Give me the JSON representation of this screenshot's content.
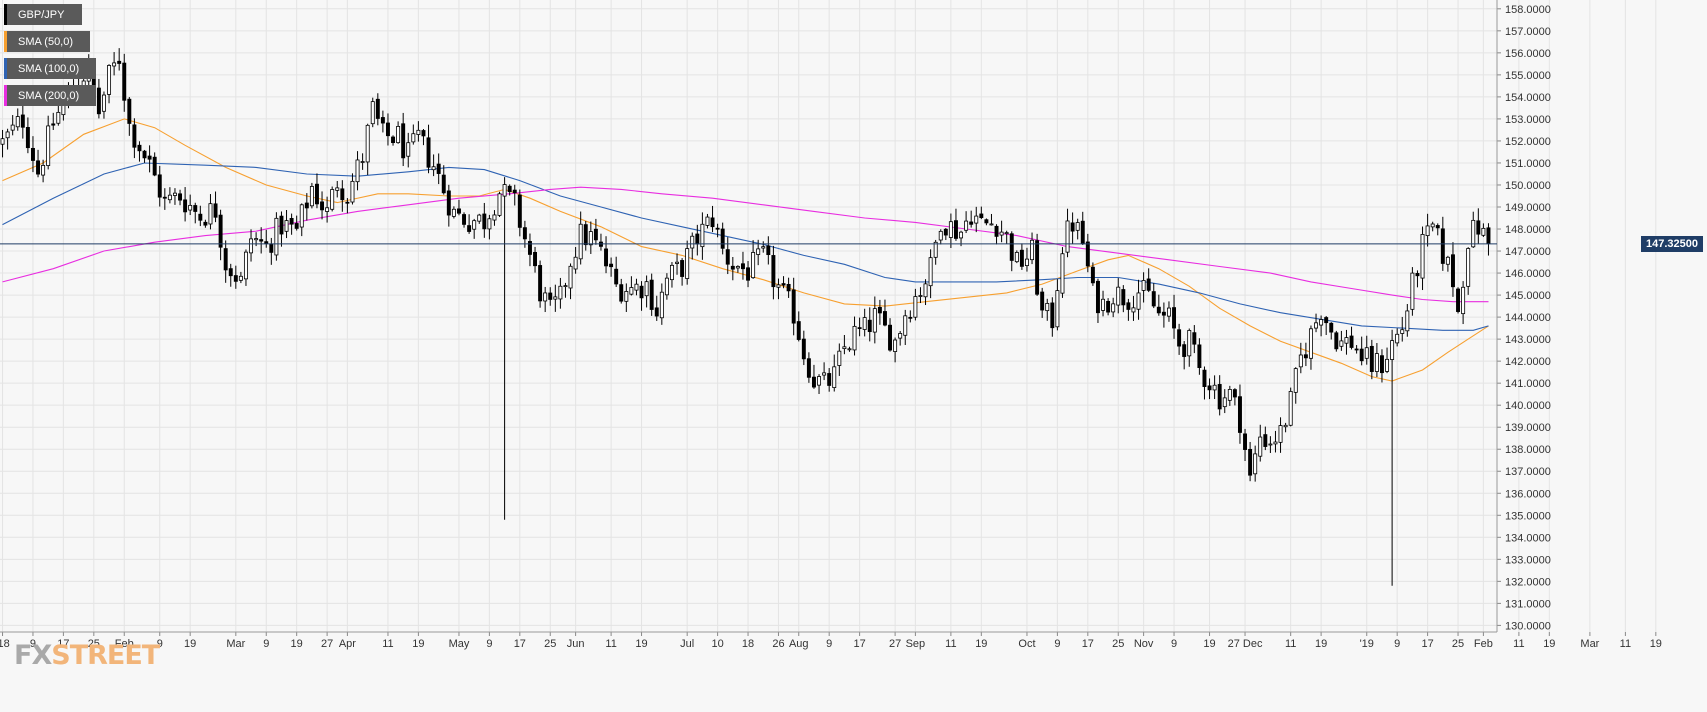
{
  "legend": {
    "symbol": "GBP/JPY",
    "sma50": "SMA (50,0)",
    "sma100": "SMA (100,0)",
    "sma200": "SMA (200,0)"
  },
  "colors": {
    "background": "#f7f7f7",
    "grid": "#e4e4e4",
    "candle_bull": "#ffffff",
    "candle_bear": "#000000",
    "sma50": "#f7a030",
    "sma100": "#2f63b3",
    "sma200": "#e82ee0",
    "current_price_line": "#1f3d66",
    "price_tag_bg": "#1f3d66"
  },
  "current_price": {
    "value": 147.325,
    "label": "147.32500"
  },
  "logo": {
    "part1": "FX",
    "part2": "STREET"
  },
  "chart_data": {
    "type": "candlestick",
    "title": "GBP/JPY",
    "y_axis_side": "right",
    "ylim": [
      129.7,
      158.4
    ],
    "y_ticks": [
      {
        "value": 158,
        "label": "158.0000"
      },
      {
        "value": 157,
        "label": "157.0000"
      },
      {
        "value": 156,
        "label": "156.0000"
      },
      {
        "value": 155,
        "label": "155.0000"
      },
      {
        "value": 154,
        "label": "154.0000"
      },
      {
        "value": 153,
        "label": "153.0000"
      },
      {
        "value": 152,
        "label": "152.0000"
      },
      {
        "value": 151,
        "label": "151.0000"
      },
      {
        "value": 150,
        "label": "150.0000"
      },
      {
        "value": 149,
        "label": "149.0000"
      },
      {
        "value": 148,
        "label": "148.0000"
      },
      {
        "value": 147,
        "label": "147.0000"
      },
      {
        "value": 146,
        "label": "146.0000"
      },
      {
        "value": 145,
        "label": "145.0000"
      },
      {
        "value": 144,
        "label": "144.0000"
      },
      {
        "value": 143,
        "label": "143.0000"
      },
      {
        "value": 142,
        "label": "142.0000"
      },
      {
        "value": 141,
        "label": "141.0000"
      },
      {
        "value": 140,
        "label": "140.0000"
      },
      {
        "value": 139,
        "label": "139.0000"
      },
      {
        "value": 138,
        "label": "138.0000"
      },
      {
        "value": 137,
        "label": "137.0000"
      },
      {
        "value": 136,
        "label": "136.0000"
      },
      {
        "value": 135,
        "label": "135.0000"
      },
      {
        "value": 134,
        "label": "134.0000"
      },
      {
        "value": 133,
        "label": "133.0000"
      },
      {
        "value": 132,
        "label": "132.0000"
      },
      {
        "value": 131,
        "label": "131.0000"
      },
      {
        "value": 130,
        "label": "130.0000"
      }
    ],
    "x_ticks": [
      {
        "label": "'18",
        "bar": 0
      },
      {
        "label": "9",
        "bar": 6
      },
      {
        "label": "17",
        "bar": 12
      },
      {
        "label": "25",
        "bar": 18
      },
      {
        "label": "Feb",
        "bar": 24
      },
      {
        "label": "9",
        "bar": 31
      },
      {
        "label": "19",
        "bar": 37
      },
      {
        "label": "Mar",
        "bar": 46
      },
      {
        "label": "9",
        "bar": 52
      },
      {
        "label": "19",
        "bar": 58
      },
      {
        "label": "27",
        "bar": 64
      },
      {
        "label": "Apr",
        "bar": 68
      },
      {
        "label": "11",
        "bar": 76
      },
      {
        "label": "19",
        "bar": 82
      },
      {
        "label": "May",
        "bar": 90
      },
      {
        "label": "9",
        "bar": 96
      },
      {
        "label": "17",
        "bar": 102
      },
      {
        "label": "25",
        "bar": 108
      },
      {
        "label": "Jun",
        "bar": 113
      },
      {
        "label": "11",
        "bar": 120
      },
      {
        "label": "19",
        "bar": 126
      },
      {
        "label": "Jul",
        "bar": 135
      },
      {
        "label": "10",
        "bar": 141
      },
      {
        "label": "18",
        "bar": 147
      },
      {
        "label": "26",
        "bar": 153
      },
      {
        "label": "Aug",
        "bar": 157
      },
      {
        "label": "9",
        "bar": 163
      },
      {
        "label": "17",
        "bar": 169
      },
      {
        "label": "27",
        "bar": 176
      },
      {
        "label": "Sep",
        "bar": 180
      },
      {
        "label": "11",
        "bar": 187
      },
      {
        "label": "19",
        "bar": 193
      },
      {
        "label": "Oct",
        "bar": 202
      },
      {
        "label": "9",
        "bar": 208
      },
      {
        "label": "17",
        "bar": 214
      },
      {
        "label": "25",
        "bar": 220
      },
      {
        "label": "Nov",
        "bar": 225
      },
      {
        "label": "9",
        "bar": 231
      },
      {
        "label": "19",
        "bar": 238
      },
      {
        "label": "27 Dec",
        "bar": 245
      },
      {
        "label": "11",
        "bar": 254
      },
      {
        "label": "19",
        "bar": 260
      },
      {
        "label": "'19",
        "bar": 269
      },
      {
        "label": "9",
        "bar": 275
      },
      {
        "label": "17",
        "bar": 281
      },
      {
        "label": "25",
        "bar": 287
      },
      {
        "label": "Feb",
        "bar": 292
      },
      {
        "label": "11",
        "bar": 299
      },
      {
        "label": "19",
        "bar": 305
      },
      {
        "label": "Mar",
        "bar": 313
      },
      {
        "label": "11",
        "bar": 320
      },
      {
        "label": "19",
        "bar": 326
      }
    ],
    "path_anchors": [
      [
        0,
        151.9
      ],
      [
        4,
        153.0
      ],
      [
        7,
        150.6
      ],
      [
        10,
        152.8
      ],
      [
        14,
        154.6
      ],
      [
        17,
        155.2
      ],
      [
        19,
        153.3
      ],
      [
        21,
        154.9
      ],
      [
        23,
        155.8
      ],
      [
        25,
        152.7
      ],
      [
        29,
        150.9
      ],
      [
        32,
        149.2
      ],
      [
        35,
        149.5
      ],
      [
        39,
        148.6
      ],
      [
        42,
        148.9
      ],
      [
        44,
        146.5
      ],
      [
        47,
        145.6
      ],
      [
        49,
        147.6
      ],
      [
        52,
        147.2
      ],
      [
        55,
        148.2
      ],
      [
        58,
        147.9
      ],
      [
        61,
        149.9
      ],
      [
        64,
        148.7
      ],
      [
        66,
        150.2
      ],
      [
        68,
        149.6
      ],
      [
        71,
        151.3
      ],
      [
        73,
        153.4
      ],
      [
        75,
        152.2
      ],
      [
        78,
        152.2
      ],
      [
        80,
        151.3
      ],
      [
        82,
        152.1
      ],
      [
        85,
        150.9
      ],
      [
        89,
        148.7
      ],
      [
        92,
        148.4
      ],
      [
        95,
        148.4
      ],
      [
        98,
        149.7
      ],
      [
        101,
        149.1
      ],
      [
        104,
        146.8
      ],
      [
        106,
        145.2
      ],
      [
        108,
        144.2
      ],
      [
        110,
        144.8
      ],
      [
        112,
        146.6
      ],
      [
        114,
        147.7
      ],
      [
        116,
        147.6
      ],
      [
        118,
        146.9
      ],
      [
        121,
        145.4
      ],
      [
        124,
        145.3
      ],
      [
        127,
        145.5
      ],
      [
        129,
        144.3
      ],
      [
        131,
        145.7
      ],
      [
        134,
        146.3
      ],
      [
        137,
        147.6
      ],
      [
        140,
        148.5
      ],
      [
        142,
        147.0
      ],
      [
        144,
        146.4
      ],
      [
        147,
        146.1
      ],
      [
        150,
        146.7
      ],
      [
        153,
        145.3
      ],
      [
        156,
        144.2
      ],
      [
        158,
        142.4
      ],
      [
        160,
        141.2
      ],
      [
        162,
        140.9
      ],
      [
        164,
        141.3
      ],
      [
        166,
        142.6
      ],
      [
        168,
        143.2
      ],
      [
        170,
        143.4
      ],
      [
        172,
        144.0
      ],
      [
        174,
        143.4
      ],
      [
        176,
        142.9
      ],
      [
        178,
        144.2
      ],
      [
        181,
        145.3
      ],
      [
        183,
        146.2
      ],
      [
        185,
        148.5
      ],
      [
        187,
        148.1
      ],
      [
        189,
        147.9
      ],
      [
        191,
        148.8
      ],
      [
        193,
        148.2
      ],
      [
        196,
        148.3
      ],
      [
        198,
        147.6
      ],
      [
        200,
        146.4
      ],
      [
        203,
        146.9
      ],
      [
        205,
        144.1
      ],
      [
        207,
        143.9
      ],
      [
        209,
        147.3
      ],
      [
        211,
        148.3
      ],
      [
        213,
        147.4
      ],
      [
        215,
        145.0
      ],
      [
        217,
        144.6
      ],
      [
        219,
        145.1
      ],
      [
        222,
        144.9
      ],
      [
        224,
        145.2
      ],
      [
        226,
        144.9
      ],
      [
        228,
        144.1
      ],
      [
        230,
        143.9
      ],
      [
        232,
        142.8
      ],
      [
        234,
        142.8
      ],
      [
        236,
        141.6
      ],
      [
        238,
        141.1
      ],
      [
        240,
        140.4
      ],
      [
        242,
        140.5
      ],
      [
        244,
        139.4
      ],
      [
        246,
        136.6
      ],
      [
        248,
        138.6
      ],
      [
        250,
        138.4
      ],
      [
        252,
        138.7
      ],
      [
        254,
        140.1
      ],
      [
        256,
        142.1
      ],
      [
        258,
        143.2
      ],
      [
        260,
        144.4
      ],
      [
        262,
        143.4
      ],
      [
        264,
        142.8
      ],
      [
        266,
        142.9
      ],
      [
        268,
        142.2
      ],
      [
        270,
        141.8
      ],
      [
        272,
        141.9
      ],
      [
        274,
        142.8
      ],
      [
        276,
        143.5
      ],
      [
        278,
        145.4
      ],
      [
        280,
        147.2
      ],
      [
        282,
        148.0
      ],
      [
        284,
        146.9
      ],
      [
        286,
        145.7
      ],
      [
        287,
        144.2
      ],
      [
        289,
        147.6
      ],
      [
        291,
        148.1
      ],
      [
        293,
        147.3
      ]
    ],
    "spikes": [
      {
        "bar": 99,
        "low": 134.8
      },
      {
        "bar": 274,
        "low": 131.8
      }
    ],
    "series": [
      {
        "name": "SMA (50,0)",
        "color": "#f7a030",
        "points": [
          [
            0,
            150.2
          ],
          [
            8,
            151.0
          ],
          [
            16,
            152.3
          ],
          [
            24,
            153.0
          ],
          [
            30,
            152.6
          ],
          [
            36,
            151.8
          ],
          [
            44,
            150.8
          ],
          [
            52,
            150.0
          ],
          [
            60,
            149.5
          ],
          [
            66,
            149.2
          ],
          [
            74,
            149.6
          ],
          [
            80,
            149.6
          ],
          [
            88,
            149.5
          ],
          [
            94,
            149.5
          ],
          [
            99,
            149.8
          ],
          [
            104,
            149.4
          ],
          [
            110,
            148.8
          ],
          [
            118,
            148.1
          ],
          [
            126,
            147.2
          ],
          [
            134,
            146.8
          ],
          [
            142,
            146.2
          ],
          [
            150,
            145.7
          ],
          [
            158,
            145.1
          ],
          [
            166,
            144.6
          ],
          [
            174,
            144.5
          ],
          [
            182,
            144.7
          ],
          [
            190,
            144.9
          ],
          [
            198,
            145.1
          ],
          [
            205,
            145.5
          ],
          [
            212,
            146.1
          ],
          [
            218,
            146.6
          ],
          [
            222,
            146.8
          ],
          [
            228,
            146.2
          ],
          [
            234,
            145.4
          ],
          [
            240,
            144.4
          ],
          [
            246,
            143.6
          ],
          [
            252,
            142.9
          ],
          [
            258,
            142.4
          ],
          [
            264,
            141.9
          ],
          [
            270,
            141.3
          ],
          [
            274,
            141.1
          ],
          [
            280,
            141.6
          ],
          [
            285,
            142.4
          ],
          [
            289,
            143.0
          ],
          [
            293,
            143.6
          ]
        ]
      },
      {
        "name": "SMA (100,0)",
        "color": "#2f63b3",
        "points": [
          [
            0,
            148.2
          ],
          [
            10,
            149.4
          ],
          [
            20,
            150.5
          ],
          [
            28,
            151.0
          ],
          [
            40,
            150.9
          ],
          [
            50,
            150.8
          ],
          [
            60,
            150.5
          ],
          [
            70,
            150.4
          ],
          [
            80,
            150.6
          ],
          [
            88,
            150.8
          ],
          [
            95,
            150.7
          ],
          [
            102,
            150.2
          ],
          [
            110,
            149.5
          ],
          [
            118,
            149.0
          ],
          [
            126,
            148.5
          ],
          [
            134,
            148.1
          ],
          [
            142,
            147.7
          ],
          [
            150,
            147.3
          ],
          [
            158,
            146.8
          ],
          [
            166,
            146.4
          ],
          [
            174,
            145.8
          ],
          [
            180,
            145.6
          ],
          [
            188,
            145.6
          ],
          [
            196,
            145.6
          ],
          [
            205,
            145.7
          ],
          [
            212,
            145.8
          ],
          [
            220,
            145.8
          ],
          [
            228,
            145.5
          ],
          [
            236,
            145.1
          ],
          [
            244,
            144.6
          ],
          [
            252,
            144.2
          ],
          [
            260,
            143.9
          ],
          [
            268,
            143.6
          ],
          [
            276,
            143.5
          ],
          [
            284,
            143.4
          ],
          [
            290,
            143.4
          ],
          [
            293,
            143.6
          ]
        ]
      },
      {
        "name": "SMA (200,0)",
        "color": "#e82ee0",
        "points": [
          [
            0,
            145.6
          ],
          [
            10,
            146.2
          ],
          [
            20,
            147.0
          ],
          [
            30,
            147.4
          ],
          [
            40,
            147.7
          ],
          [
            50,
            147.9
          ],
          [
            60,
            148.4
          ],
          [
            70,
            148.8
          ],
          [
            80,
            149.1
          ],
          [
            90,
            149.4
          ],
          [
            100,
            149.6
          ],
          [
            108,
            149.8
          ],
          [
            114,
            149.9
          ],
          [
            122,
            149.8
          ],
          [
            130,
            149.6
          ],
          [
            140,
            149.4
          ],
          [
            150,
            149.1
          ],
          [
            160,
            148.8
          ],
          [
            170,
            148.5
          ],
          [
            180,
            148.3
          ],
          [
            190,
            148.0
          ],
          [
            200,
            147.7
          ],
          [
            210,
            147.2
          ],
          [
            220,
            146.9
          ],
          [
            230,
            146.6
          ],
          [
            240,
            146.3
          ],
          [
            250,
            146.0
          ],
          [
            258,
            145.6
          ],
          [
            266,
            145.3
          ],
          [
            274,
            145.0
          ],
          [
            280,
            144.8
          ],
          [
            286,
            144.7
          ],
          [
            293,
            144.7
          ]
        ]
      }
    ]
  }
}
